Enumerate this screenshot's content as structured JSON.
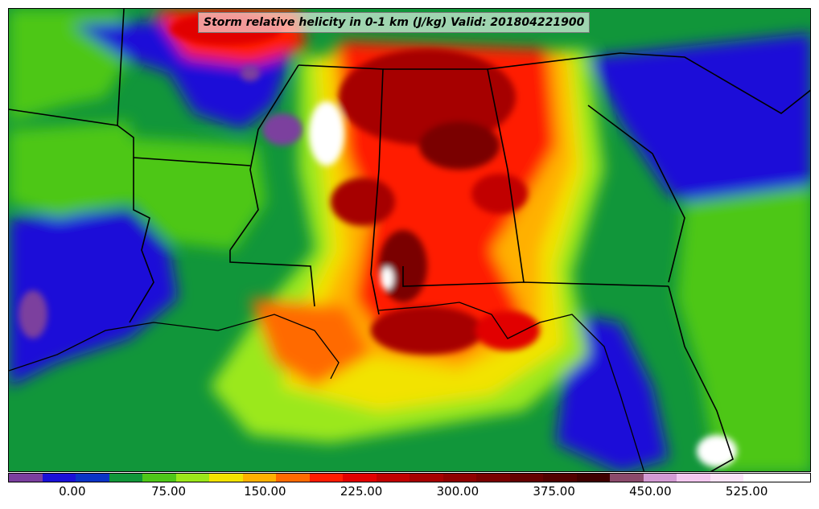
{
  "map": {
    "title": "Storm relative helicity in 0-1 km (J/kg) Valid: 201804221900"
  },
  "colorbar": {
    "colors": [
      "#7b3f9e",
      "#1a10d8",
      "#0a34c6",
      "#11963a",
      "#4ec719",
      "#9be81a",
      "#f2e300",
      "#ffb000",
      "#ff6a00",
      "#ff1c00",
      "#e10000",
      "#c10000",
      "#a60000",
      "#8f0000",
      "#7a0000",
      "#650000",
      "#520000",
      "#3f0000",
      "#8b4a6b",
      "#d39ad3",
      "#f3c8f0",
      "#fbe4f8",
      "#ffffff",
      "#ffffff"
    ],
    "tick_labels": [
      "0.00",
      "75.00",
      "150.00",
      "225.00",
      "300.00",
      "375.00",
      "450.00",
      "525.00"
    ],
    "tick_values": [
      0,
      75,
      150,
      225,
      300,
      375,
      450,
      525
    ],
    "range": [
      -50,
      575
    ]
  }
}
